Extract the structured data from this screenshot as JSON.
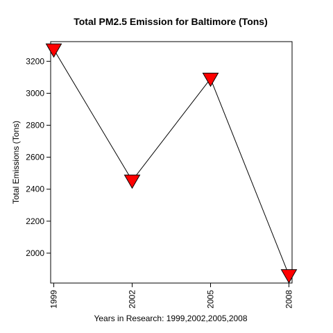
{
  "chart_data": {
    "type": "line",
    "title": "Total PM2.5 Emission for Baltimore (Tons)",
    "xlabel": "Years in Research: 1999,2002,2005,2008",
    "ylabel": "Total Emissions (Tons)",
    "categories": [
      "1999",
      "2002",
      "2005",
      "2008"
    ],
    "x": [
      1999,
      2002,
      2005,
      2008
    ],
    "series": [
      {
        "values": [
          3274.18,
          2453.92,
          3091.35,
          1862.28
        ]
      }
    ],
    "y_ticks": [
      2000,
      2200,
      2400,
      2600,
      2800,
      3000,
      3200
    ],
    "y_tick_labels": [
      "2000",
      "2200",
      "2400",
      "2600",
      "2800",
      "3000",
      "3200"
    ],
    "ylim": [
      1813,
      3323
    ],
    "xlim": [
      1998.88,
      2008.12
    ],
    "grid": false,
    "legend": false,
    "marker": "triangle-down",
    "marker_fill": "#ff0000",
    "marker_stroke": "#000000",
    "line_color": "#000000"
  }
}
